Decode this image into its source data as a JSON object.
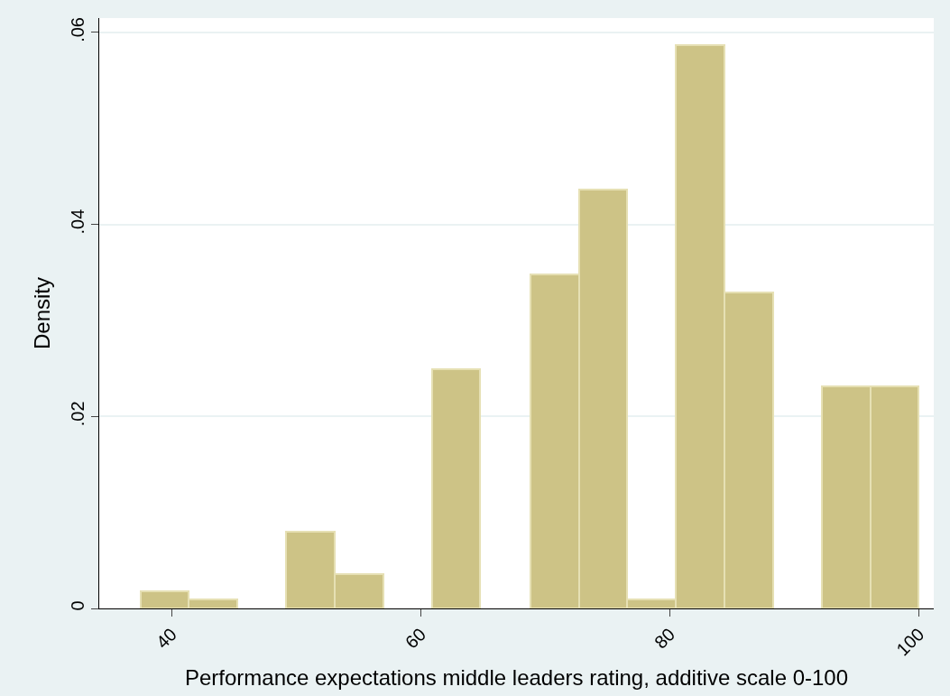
{
  "chart_data": {
    "type": "histogram",
    "xlabel": "Performance expectations middle leaders rating, additive scale 0-100",
    "ylabel": "Density",
    "bins": [
      37.5,
      41.4,
      45.3,
      49.2,
      53.1,
      57.0,
      60.9,
      64.8,
      68.8,
      72.7,
      76.6,
      80.5,
      84.4,
      88.3,
      92.2,
      96.1,
      100
    ],
    "values": [
      0.0018,
      0.0009,
      0,
      0.008,
      0.0036,
      0,
      0.0249,
      0,
      0.0348,
      0.0436,
      0.0009,
      0.0587,
      0.0329,
      0,
      0.0231,
      0.0231
    ],
    "color": "#cdc386",
    "xlim": [
      34.2,
      101.2
    ],
    "xticks": [
      40,
      60,
      80,
      100
    ],
    "ylim": [
      0,
      0.0615
    ],
    "yticks": [
      {
        "value": 0,
        "label": "0"
      },
      {
        "value": 0.02,
        "label": ".02"
      },
      {
        "value": 0.04,
        "label": ".04"
      },
      {
        "value": 0.06,
        "label": ".06"
      }
    ],
    "grid": "y"
  }
}
